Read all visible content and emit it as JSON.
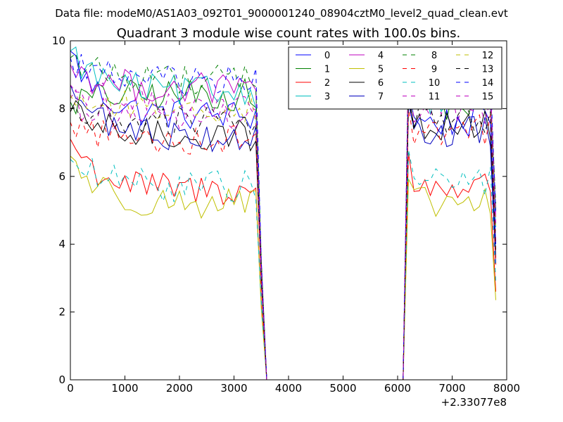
{
  "header": {
    "suptitle": "Data file: modeM0/AS1A03_092T01_9000001240_08904cztM0_level2_quad_clean.evt"
  },
  "chart_data": {
    "type": "line",
    "title": "Quadrant 3 module wise count rates with 100.0s bins.",
    "xlabel": "",
    "ylabel": "",
    "x_offset_label": "+2.33077e8",
    "xlim": [
      0,
      8000
    ],
    "ylim": [
      0,
      10
    ],
    "xticks": [
      0,
      1000,
      2000,
      3000,
      4000,
      5000,
      6000,
      7000,
      8000
    ],
    "yticks": [
      0,
      2,
      4,
      6,
      8,
      10
    ],
    "grid": false,
    "legend_position": "top-right",
    "segments": [
      {
        "start": 0,
        "end": 3400,
        "step": 100
      },
      {
        "start": 6100,
        "end": 7800,
        "step": 100
      }
    ],
    "gap_range": [
      3600,
      6100
    ],
    "series": [
      {
        "name": "0",
        "color": "#0000ff",
        "dash": "solid",
        "level1": 7.8,
        "level2": 7.6,
        "start": 9.7,
        "end": 4.0
      },
      {
        "name": "1",
        "color": "#008000",
        "dash": "solid",
        "level1": 8.4,
        "level2": 8.1,
        "start": 8.2,
        "end": 5.0
      },
      {
        "name": "2",
        "color": "#ff0000",
        "dash": "solid",
        "level1": 5.6,
        "level2": 5.7,
        "start": 7.1,
        "end": 2.6
      },
      {
        "name": "3",
        "color": "#00bfbf",
        "dash": "solid",
        "level1": 8.5,
        "level2": 8.3,
        "start": 9.7,
        "end": 4.5
      },
      {
        "name": "4",
        "color": "#bf00bf",
        "dash": "solid",
        "level1": 8.6,
        "level2": 8.5,
        "start": 9.3,
        "end": 4.8
      },
      {
        "name": "5",
        "color": "#bfbf00",
        "dash": "solid",
        "level1": 5.2,
        "level2": 5.2,
        "start": 6.6,
        "end": 2.35
      },
      {
        "name": "6",
        "color": "#000000",
        "dash": "solid",
        "level1": 7.2,
        "level2": 7.5,
        "start": 7.9,
        "end": 3.6
      },
      {
        "name": "7",
        "color": "#0000bf",
        "dash": "solid",
        "level1": 7.2,
        "level2": 7.3,
        "start": 8.7,
        "end": 3.4
      },
      {
        "name": "8",
        "color": "#008000",
        "dash": "dashed",
        "level1": 8.9,
        "level2": 9.0,
        "start": 9.5,
        "end": 5.2
      },
      {
        "name": "9",
        "color": "#ff0000",
        "dash": "dashed",
        "level1": 7.1,
        "level2": 7.4,
        "start": 7.6,
        "end": 3.4
      },
      {
        "name": "10",
        "color": "#00bfbf",
        "dash": "dashed",
        "level1": 5.7,
        "level2": 5.9,
        "start": 6.5,
        "end": 2.9
      },
      {
        "name": "11",
        "color": "#bf00bf",
        "dash": "dashed",
        "level1": 7.7,
        "level2": 8.0,
        "start": 8.3,
        "end": 4.1
      },
      {
        "name": "12",
        "color": "#bfbf00",
        "dash": "dashed",
        "level1": 8.0,
        "level2": 8.4,
        "start": 8.4,
        "end": 4.4
      },
      {
        "name": "13",
        "color": "#000000",
        "dash": "dashed",
        "level1": 7.6,
        "level2": 7.7,
        "start": 8.0,
        "end": 3.8
      },
      {
        "name": "14",
        "color": "#0000ff",
        "dash": "dashed",
        "level1": 8.8,
        "level2": 8.9,
        "start": 9.5,
        "end": 4.9
      },
      {
        "name": "15",
        "color": "#bf00bf",
        "dash": "dashed",
        "level1": 8.1,
        "level2": 8.6,
        "start": 8.7,
        "end": 4.6
      }
    ]
  }
}
